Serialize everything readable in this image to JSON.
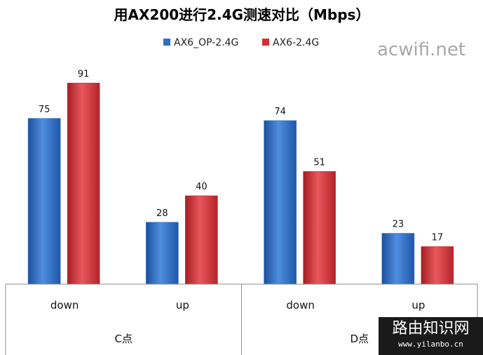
{
  "chart_data": {
    "type": "bar",
    "title": "用AX200进行2.4G测速对比（Mbps）",
    "groups": [
      "C点",
      "D点"
    ],
    "categories": [
      "down",
      "up",
      "down",
      "up"
    ],
    "series": [
      {
        "name": "AX6_OP-2.4G",
        "color": "#2f6fc4",
        "values": [
          75,
          28,
          74,
          23
        ]
      },
      {
        "name": "AX6-2.4G",
        "color": "#d02f33",
        "values": [
          91,
          40,
          51,
          17
        ]
      }
    ],
    "ylim": [
      0,
      100
    ],
    "legend_position": "top",
    "grid": false,
    "xlabel": "",
    "ylabel": ""
  },
  "watermarks": {
    "site": "acwifi.net",
    "cn_name": "路由知识网",
    "url": "www.yilanbo.cn"
  }
}
